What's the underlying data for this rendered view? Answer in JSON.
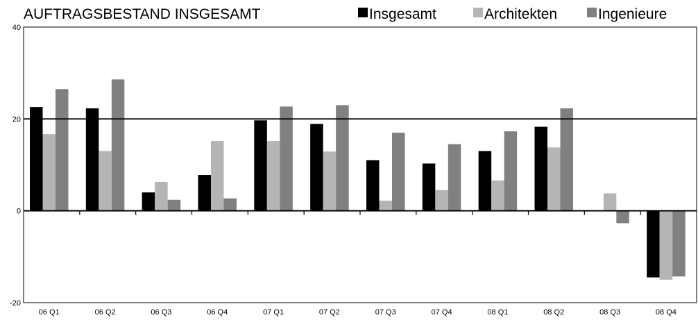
{
  "chart_data": {
    "type": "bar",
    "title": "AUFTRAGSBESTAND INSGESAMT",
    "categories": [
      "06 Q1",
      "06 Q2",
      "06 Q3",
      "06 Q4",
      "07 Q1",
      "07 Q2",
      "07 Q3",
      "07 Q4",
      "08 Q1",
      "08 Q2",
      "08 Q3",
      "08 Q4"
    ],
    "series": [
      {
        "name": "Insgesamt",
        "color": "#000000",
        "values": [
          22.6,
          22.3,
          4.0,
          7.8,
          19.7,
          18.9,
          11.0,
          10.3,
          13.0,
          18.3,
          0.0,
          -14.5
        ]
      },
      {
        "name": "Architekten",
        "color": "#b5b5b5",
        "values": [
          16.7,
          13.0,
          6.3,
          15.2,
          15.2,
          12.9,
          2.2,
          4.5,
          6.6,
          13.8,
          3.8,
          -15.0
        ]
      },
      {
        "name": "Ingenieure",
        "color": "#808080",
        "values": [
          26.5,
          28.6,
          2.4,
          2.7,
          22.7,
          23.0,
          17.0,
          14.5,
          17.3,
          22.3,
          -2.7,
          -14.3
        ]
      }
    ],
    "yticks": [
      "40",
      "20",
      "0",
      "-20"
    ],
    "ylim": [
      -20,
      40
    ],
    "reference_line": 20,
    "legend_position": "top-right"
  }
}
